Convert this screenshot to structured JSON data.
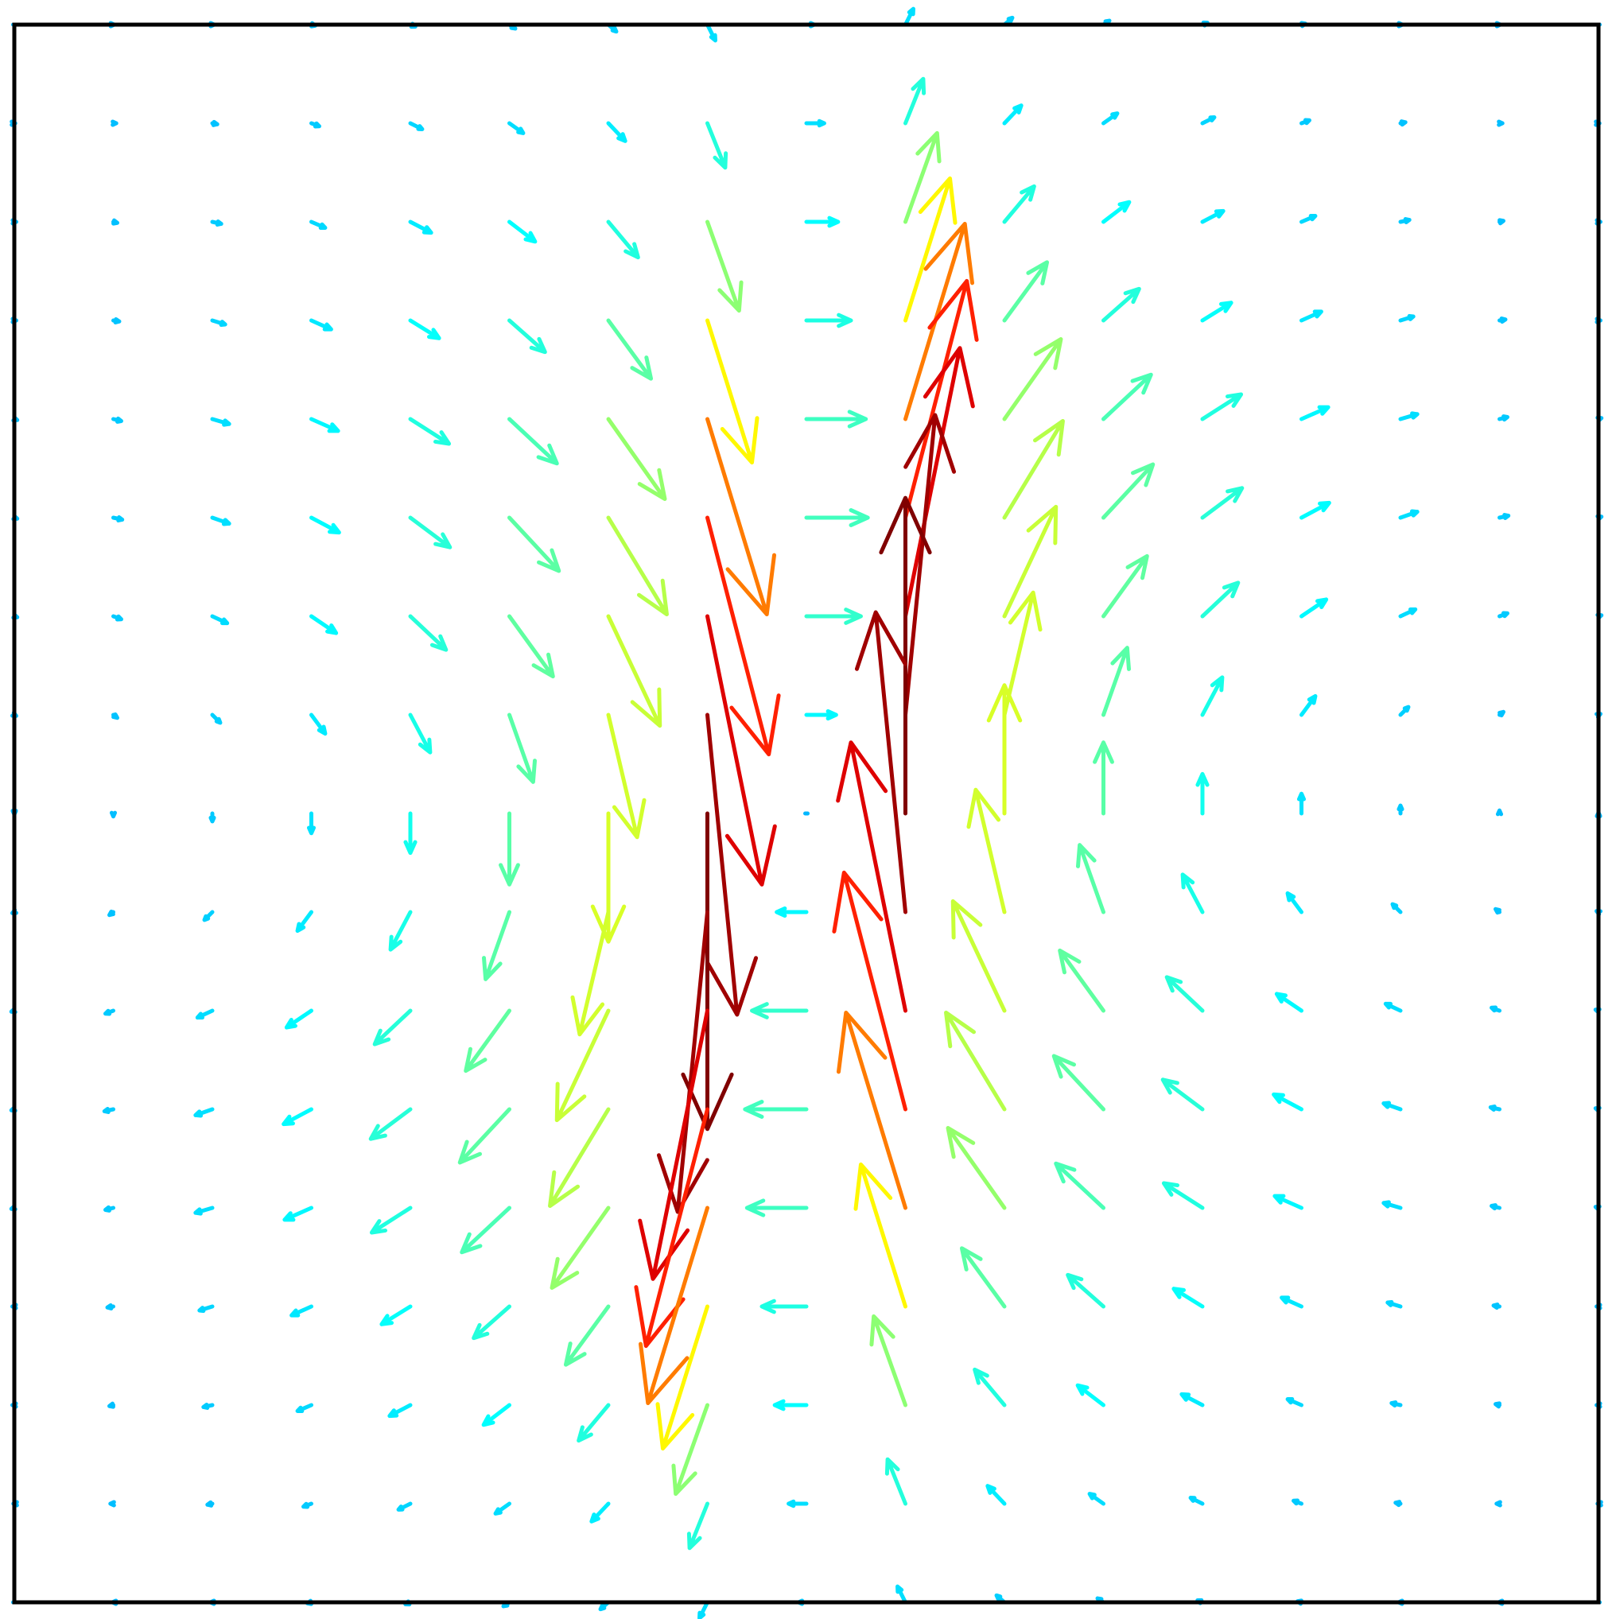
{
  "chart_data": {
    "type": "quiver",
    "colormap": "jet",
    "clim": [
      -1.4,
      3.2
    ],
    "xlim": [
      -8,
      8
    ],
    "ylim": [
      -8,
      8
    ],
    "x": [
      -8,
      -7,
      -6,
      -5,
      -4,
      -3,
      -2,
      -1,
      0,
      1,
      2,
      3,
      4,
      5,
      6,
      7,
      8
    ],
    "y": [
      8,
      7,
      6,
      5,
      4,
      3,
      2,
      1,
      0,
      -1,
      -2,
      -3,
      -4,
      -5,
      -6,
      -7,
      -8
    ],
    "u": [
      [
        0,
        0.01,
        0.02,
        0.04,
        0.05,
        0.06,
        0.08,
        0.08,
        0.08,
        0.08,
        0.08,
        0.06,
        0.05,
        0.04,
        0.02,
        0.01,
        0
      ],
      [
        0.01,
        0.03,
        0.05,
        0.08,
        0.12,
        0.14,
        0.17,
        0.18,
        0.18,
        0.18,
        0.17,
        0.14,
        0.12,
        0.08,
        0.05,
        0.03,
        0.01
      ],
      [
        0.02,
        0.04,
        0.09,
        0.14,
        0.21,
        0.26,
        0.3,
        0.32,
        0.32,
        0.32,
        0.3,
        0.26,
        0.21,
        0.14,
        0.09,
        0.04,
        0.02
      ],
      [
        0.02,
        0.06,
        0.13,
        0.2,
        0.29,
        0.36,
        0.43,
        0.45,
        0.45,
        0.45,
        0.43,
        0.36,
        0.29,
        0.2,
        0.13,
        0.06,
        0.02
      ],
      [
        0.03,
        0.08,
        0.17,
        0.27,
        0.39,
        0.48,
        0.57,
        0.6,
        0.6,
        0.6,
        0.57,
        0.48,
        0.39,
        0.27,
        0.17,
        0.08,
        0.03
      ],
      [
        0.03,
        0.09,
        0.17,
        0.28,
        0.4,
        0.5,
        0.59,
        0.62,
        0.62,
        0.62,
        0.59,
        0.5,
        0.4,
        0.28,
        0.17,
        0.09,
        0.03
      ],
      [
        0.03,
        0.08,
        0.15,
        0.25,
        0.36,
        0.44,
        0.52,
        0.55,
        0.55,
        0.55,
        0.52,
        0.44,
        0.36,
        0.25,
        0.15,
        0.08,
        0.03
      ],
      [
        0.02,
        0.04,
        0.08,
        0.14,
        0.2,
        0.24,
        0.29,
        0.3,
        0.3,
        0.3,
        0.29,
        0.24,
        0.2,
        0.14,
        0.08,
        0.04,
        0.02
      ],
      [
        0,
        0,
        0,
        0,
        0,
        0,
        0,
        0,
        0,
        0,
        0,
        0,
        0,
        0,
        0,
        0,
        0
      ],
      [
        -0.02,
        -0.04,
        -0.08,
        -0.14,
        -0.2,
        -0.24,
        -0.29,
        -0.3,
        -0.3,
        -0.3,
        -0.29,
        -0.24,
        -0.2,
        -0.14,
        -0.08,
        -0.04,
        -0.02
      ],
      [
        -0.03,
        -0.08,
        -0.15,
        -0.25,
        -0.36,
        -0.44,
        -0.52,
        -0.55,
        -0.55,
        -0.55,
        -0.52,
        -0.44,
        -0.36,
        -0.25,
        -0.15,
        -0.08,
        -0.03
      ],
      [
        -0.03,
        -0.09,
        -0.17,
        -0.28,
        -0.4,
        -0.5,
        -0.59,
        -0.62,
        -0.62,
        -0.62,
        -0.59,
        -0.5,
        -0.4,
        -0.28,
        -0.17,
        -0.09,
        -0.03
      ],
      [
        -0.03,
        -0.08,
        -0.17,
        -0.27,
        -0.39,
        -0.48,
        -0.57,
        -0.6,
        -0.6,
        -0.6,
        -0.57,
        -0.48,
        -0.39,
        -0.27,
        -0.17,
        -0.08,
        -0.03
      ],
      [
        -0.02,
        -0.06,
        -0.13,
        -0.2,
        -0.29,
        -0.36,
        -0.43,
        -0.45,
        -0.45,
        -0.45,
        -0.43,
        -0.36,
        -0.29,
        -0.2,
        -0.13,
        -0.06,
        -0.02
      ],
      [
        -0.02,
        -0.04,
        -0.09,
        -0.14,
        -0.21,
        -0.26,
        -0.3,
        -0.32,
        -0.32,
        -0.32,
        -0.3,
        -0.26,
        -0.21,
        -0.14,
        -0.09,
        -0.04,
        -0.02
      ],
      [
        -0.01,
        -0.03,
        -0.05,
        -0.08,
        -0.12,
        -0.14,
        -0.17,
        -0.18,
        -0.18,
        -0.18,
        -0.17,
        -0.14,
        -0.12,
        -0.08,
        -0.05,
        -0.03,
        -0.01
      ],
      [
        0,
        -0.01,
        -0.02,
        -0.04,
        -0.05,
        -0.06,
        -0.08,
        -0.08,
        -0.08,
        -0.08,
        -0.08,
        -0.06,
        -0.05,
        -0.04,
        -0.02,
        -0.01,
        0
      ]
    ],
    "v": [
      [
        0,
        0,
        0,
        -0.01,
        -0.02,
        -0.04,
        -0.07,
        -0.16,
        0,
        0.16,
        0.07,
        0.04,
        0.02,
        0.01,
        0,
        0,
        0
      ],
      [
        0,
        0,
        -0.01,
        -0.03,
        -0.06,
        -0.1,
        -0.18,
        -0.45,
        0,
        0.45,
        0.18,
        0.1,
        0.06,
        0.03,
        0.01,
        0,
        0
      ],
      [
        0,
        -0.01,
        -0.02,
        -0.06,
        -0.11,
        -0.2,
        -0.36,
        -0.9,
        0,
        0.9,
        0.36,
        0.2,
        0.11,
        0.06,
        0.02,
        0.01,
        0
      ],
      [
        0,
        -0.01,
        -0.04,
        -0.09,
        -0.18,
        -0.32,
        -0.59,
        -1.44,
        0,
        1.44,
        0.59,
        0.32,
        0.18,
        0.09,
        0.04,
        0.01,
        0
      ],
      [
        -0.01,
        -0.02,
        -0.05,
        -0.12,
        -0.25,
        -0.45,
        -0.81,
        -1.98,
        0,
        1.98,
        0.81,
        0.45,
        0.25,
        0.12,
        0.05,
        0.02,
        0.01
      ],
      [
        -0.01,
        -0.02,
        -0.06,
        -0.15,
        -0.3,
        -0.54,
        -0.98,
        -2.4,
        0,
        2.4,
        0.98,
        0.54,
        0.3,
        0.15,
        0.06,
        0.02,
        0.01
      ],
      [
        -0.01,
        -0.03,
        -0.07,
        -0.17,
        -0.34,
        -0.61,
        -1.11,
        -2.72,
        0,
        2.72,
        1.11,
        0.61,
        0.34,
        0.17,
        0.07,
        0.03,
        0.01
      ],
      [
        -0.01,
        -0.03,
        -0.08,
        -0.19,
        -0.38,
        -0.68,
        -1.24,
        -3.04,
        0,
        3.04,
        1.24,
        0.68,
        0.38,
        0.19,
        0.08,
        0.03,
        0.01
      ],
      [
        -0.01,
        -0.03,
        -0.08,
        -0.2,
        -0.4,
        -0.72,
        -1.3,
        -3.2,
        0,
        3.2,
        1.3,
        0.72,
        0.4,
        0.2,
        0.08,
        0.03,
        0.01
      ],
      [
        -0.01,
        -0.03,
        -0.08,
        -0.19,
        -0.38,
        -0.68,
        -1.24,
        -3.04,
        0,
        3.04,
        1.24,
        0.68,
        0.38,
        0.19,
        0.08,
        0.03,
        0.01
      ],
      [
        -0.01,
        -0.03,
        -0.07,
        -0.17,
        -0.34,
        -0.61,
        -1.11,
        -2.72,
        0,
        2.72,
        1.11,
        0.61,
        0.34,
        0.17,
        0.07,
        0.03,
        0.01
      ],
      [
        -0.01,
        -0.02,
        -0.06,
        -0.15,
        -0.3,
        -0.54,
        -0.98,
        -2.4,
        0,
        2.4,
        0.98,
        0.54,
        0.3,
        0.15,
        0.06,
        0.02,
        0.01
      ],
      [
        -0.01,
        -0.02,
        -0.05,
        -0.12,
        -0.25,
        -0.45,
        -0.81,
        -1.98,
        0,
        1.98,
        0.81,
        0.45,
        0.25,
        0.12,
        0.05,
        0.02,
        0.01
      ],
      [
        0,
        -0.01,
        -0.04,
        -0.09,
        -0.18,
        -0.32,
        -0.59,
        -1.44,
        0,
        1.44,
        0.59,
        0.32,
        0.18,
        0.09,
        0.04,
        0.01,
        0
      ],
      [
        0,
        -0.01,
        -0.02,
        -0.06,
        -0.11,
        -0.2,
        -0.36,
        -0.9,
        0,
        0.9,
        0.36,
        0.2,
        0.11,
        0.06,
        0.02,
        0.01,
        0
      ],
      [
        0,
        0,
        -0.01,
        -0.03,
        -0.06,
        -0.1,
        -0.18,
        -0.45,
        0,
        0.45,
        0.18,
        0.1,
        0.06,
        0.03,
        0.01,
        0,
        0
      ],
      [
        0,
        0,
        0,
        -0.01,
        -0.02,
        -0.04,
        -0.07,
        -0.16,
        0,
        0.16,
        0.07,
        0.04,
        0.02,
        0.01,
        0,
        0,
        0
      ]
    ]
  }
}
